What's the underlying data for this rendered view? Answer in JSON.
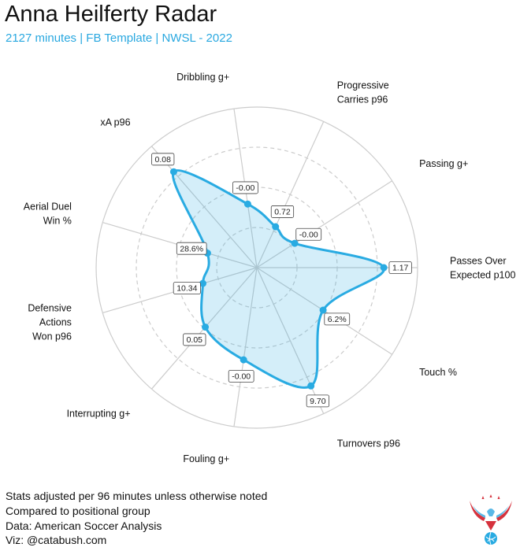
{
  "header": {
    "title": "Anna Heilferty Radar",
    "subtitle": "2127 minutes | FB Template | NWSL - 2022"
  },
  "footer": {
    "lines": [
      "Stats adjusted per 96 minutes unless otherwise noted",
      "Compared to positional group",
      "Data: American Soccer Analysis",
      "Viz: @catabush.com"
    ]
  },
  "colors": {
    "accent": "#29abe2",
    "fill": "#d3eaf7",
    "grid": "#cccccc",
    "title": "#111111",
    "subtitle": "#29a8e0"
  },
  "chart_data": {
    "type": "radar",
    "title": "Anna Heilferty Radar",
    "scale": "percentile (0-1)",
    "rlim": [
      0,
      1
    ],
    "rings": [
      0.25,
      0.5,
      0.75,
      1.0
    ],
    "axes": [
      {
        "label": [
          "Passes Over",
          "Expected p100"
        ],
        "value": 0.79,
        "display": "1.17"
      },
      {
        "label": [
          "Passing g+"
        ],
        "value": 0.28,
        "display": "-0.00"
      },
      {
        "label": [
          "Progressive",
          "Carries p96"
        ],
        "value": 0.28,
        "display": "0.72"
      },
      {
        "label": [
          "Dribbling g+"
        ],
        "value": 0.4,
        "display": "-0.00"
      },
      {
        "label": [
          "xA p96"
        ],
        "value": 0.79,
        "display": "0.08"
      },
      {
        "label": [
          "Aerial Duel",
          "Win %"
        ],
        "value": 0.32,
        "display": "28.6%"
      },
      {
        "label": [
          "Defensive",
          "Actions",
          "Won p96"
        ],
        "value": 0.35,
        "display": "10.34"
      },
      {
        "label": [
          "Interrupting g+"
        ],
        "value": 0.49,
        "display": "0.05"
      },
      {
        "label": [
          "Fouling g+"
        ],
        "value": 0.58,
        "display": "-0.00"
      },
      {
        "label": [
          "Turnovers p96"
        ],
        "value": 0.81,
        "display": "9.70"
      },
      {
        "label": [
          "Touch %"
        ],
        "value": 0.49,
        "display": "6.2%"
      }
    ]
  }
}
